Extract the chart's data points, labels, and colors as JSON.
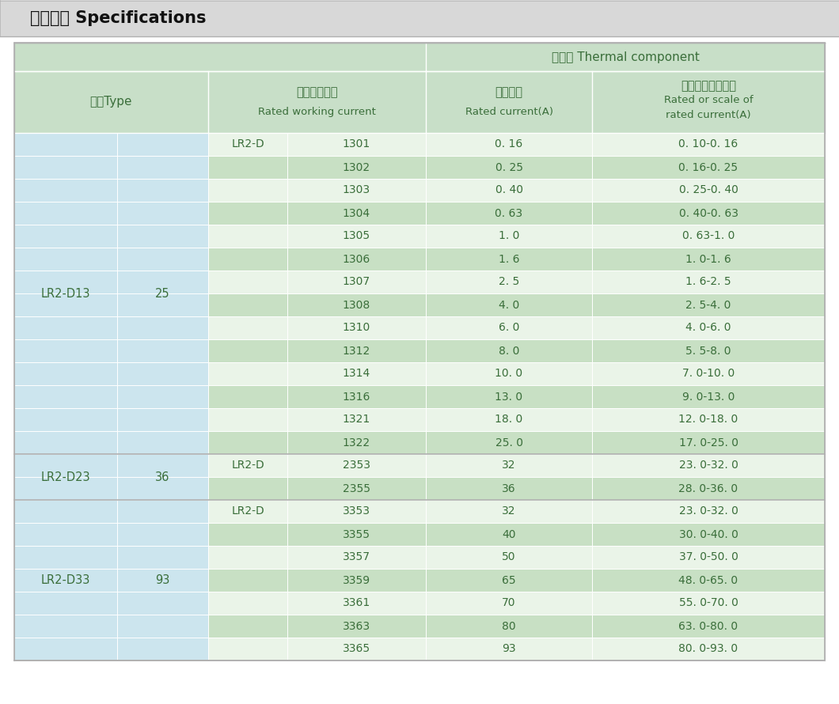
{
  "title": "技术参数 Specifications",
  "rows": [
    [
      "LR2-D13",
      "25",
      "LR2-D",
      "1301",
      "0. 16",
      "0. 10-0. 16"
    ],
    [
      "",
      "",
      "",
      "1302",
      "0. 25",
      "0. 16-0. 25"
    ],
    [
      "",
      "",
      "",
      "1303",
      "0. 40",
      "0. 25-0. 40"
    ],
    [
      "",
      "",
      "",
      "1304",
      "0. 63",
      "0. 40-0. 63"
    ],
    [
      "",
      "",
      "",
      "1305",
      "1. 0",
      "0. 63-1. 0"
    ],
    [
      "",
      "",
      "",
      "1306",
      "1. 6",
      "1. 0-1. 6"
    ],
    [
      "",
      "",
      "",
      "1307",
      "2. 5",
      "1. 6-2. 5"
    ],
    [
      "",
      "",
      "",
      "1308",
      "4. 0",
      "2. 5-4. 0"
    ],
    [
      "",
      "",
      "",
      "1310",
      "6. 0",
      "4. 0-6. 0"
    ],
    [
      "",
      "",
      "",
      "1312",
      "8. 0",
      "5. 5-8. 0"
    ],
    [
      "",
      "",
      "",
      "1314",
      "10. 0",
      "7. 0-10. 0"
    ],
    [
      "",
      "",
      "",
      "1316",
      "13. 0",
      "9. 0-13. 0"
    ],
    [
      "",
      "",
      "",
      "1321",
      "18. 0",
      "12. 0-18. 0"
    ],
    [
      "",
      "",
      "",
      "1322",
      "25. 0",
      "17. 0-25. 0"
    ],
    [
      "LR2-D23",
      "36",
      "LR2-D",
      "2353",
      "32",
      "23. 0-32. 0"
    ],
    [
      "",
      "",
      "",
      "2355",
      "36",
      "28. 0-36. 0"
    ],
    [
      "LR2-D33",
      "93",
      "LR2-D",
      "3353",
      "32",
      "23. 0-32. 0"
    ],
    [
      "",
      "",
      "",
      "3355",
      "40",
      "30. 0-40. 0"
    ],
    [
      "",
      "",
      "",
      "3357",
      "50",
      "37. 0-50. 0"
    ],
    [
      "",
      "",
      "",
      "3359",
      "65",
      "48. 0-65. 0"
    ],
    [
      "",
      "",
      "",
      "3361",
      "70",
      "55. 0-70. 0"
    ],
    [
      "",
      "",
      "",
      "3363",
      "80",
      "63. 0-80. 0"
    ],
    [
      "",
      "",
      "",
      "3365",
      "93",
      "80. 0-93. 0"
    ]
  ],
  "group_spans": [
    {
      "label": "LR2-D13",
      "current": "25",
      "start": 0,
      "end": 13
    },
    {
      "label": "LR2-D23",
      "current": "36",
      "start": 14,
      "end": 15
    },
    {
      "label": "LR2-D33",
      "current": "93",
      "start": 16,
      "end": 22
    }
  ],
  "title_bg": "#d8d8d8",
  "header_green": "#c8dfc8",
  "col_blue": "#cce5ee",
  "row_green_dark": "#c8e0c4",
  "row_green_light": "#eaf4e8",
  "text_dark": "#3a6e3a",
  "text_black": "#222222",
  "border_color": "#b0b0b0",
  "white": "#ffffff"
}
